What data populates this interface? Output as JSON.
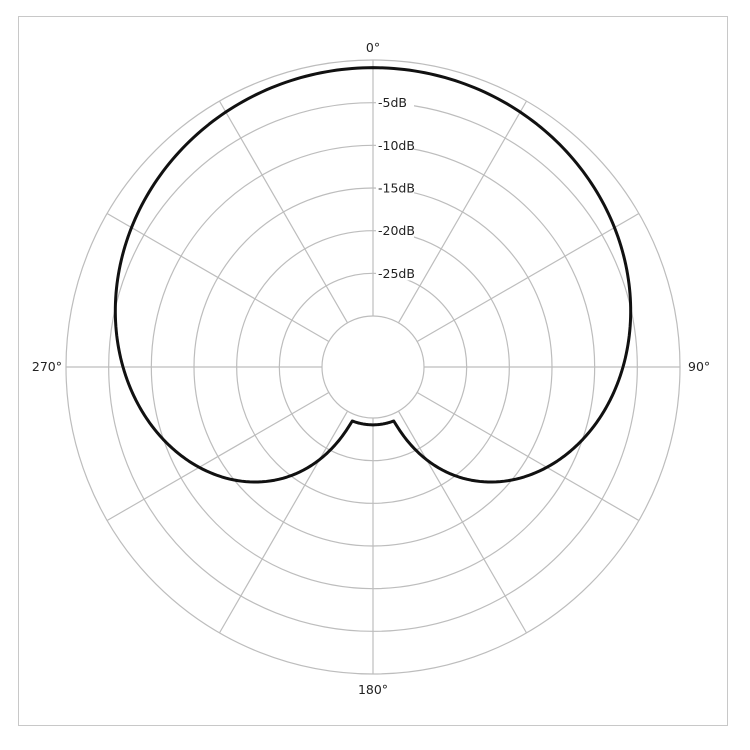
{
  "chart_data": {
    "type": "polar",
    "title": "",
    "angle_labels": [
      "0°",
      "90°",
      "180°",
      "270°"
    ],
    "radial_labels": [
      "-5dB",
      "-10dB",
      "-15dB",
      "-20dB",
      "-25dB"
    ],
    "radial_ticks_db": [
      0,
      -5,
      -10,
      -15,
      -20,
      -25,
      -30
    ],
    "radial_range_db": [
      -30,
      0
    ],
    "spoke_step_deg": 30,
    "grid": true,
    "pattern": "cardioid",
    "series": [
      {
        "angle_deg": [
          0,
          15,
          30,
          45,
          60,
          75,
          90,
          105,
          120,
          135,
          150,
          165,
          170,
          175,
          180,
          185,
          190,
          195,
          210,
          225,
          240,
          255,
          270,
          285,
          300,
          315,
          330,
          345,
          360
        ],
        "level_db": [
          -0.9,
          -1.0,
          -1.4,
          -2.0,
          -2.9,
          -4.2,
          -6.0,
          -8.4,
          -11.5,
          -15.5,
          -20.6,
          -25.9,
          -27.4,
          -28.8,
          -29.2,
          -28.8,
          -27.4,
          -25.9,
          -20.6,
          -15.5,
          -11.5,
          -8.4,
          -6.0,
          -4.2,
          -2.9,
          -2.0,
          -1.4,
          -1.0,
          -0.9
        ]
      }
    ],
    "colors": {
      "grid": "#bdbdbd",
      "curve": "#111111",
      "frame": "#c8c8c8"
    }
  }
}
